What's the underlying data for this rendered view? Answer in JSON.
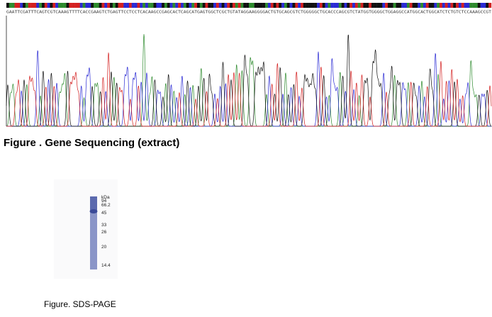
{
  "figure1": {
    "caption": "Figure . Gene Sequencing (extract)",
    "sequence": "GAATTCGATTTCAGTCGTCAAAGTTTTCACCGAAGTCTGAGTTCCTCCTCACAAGCCGAGCACTCAGCATGAGTGGCTCGCTGTATAGGAAGGGGACTGTGCAGCGTCTGGGGGCTGCACCCAGCGTCTATGGTGGGGCTGGAGGCCATGGCACTGGCATCTCTGTCTCCAAAGCCGT",
    "base_colors": {
      "A": "#2e8b2e",
      "C": "#2a2ad4",
      "G": "#111111",
      "T": "#d42020"
    }
  },
  "figure2": {
    "caption": "Figure. SDS-PAGE",
    "unit_label": "kDa",
    "markers": [
      "94",
      "66.2",
      "45",
      "33",
      "26",
      "20",
      "14.4"
    ],
    "lane_color": "#8a95c8",
    "band_color": "#3a4a98"
  }
}
